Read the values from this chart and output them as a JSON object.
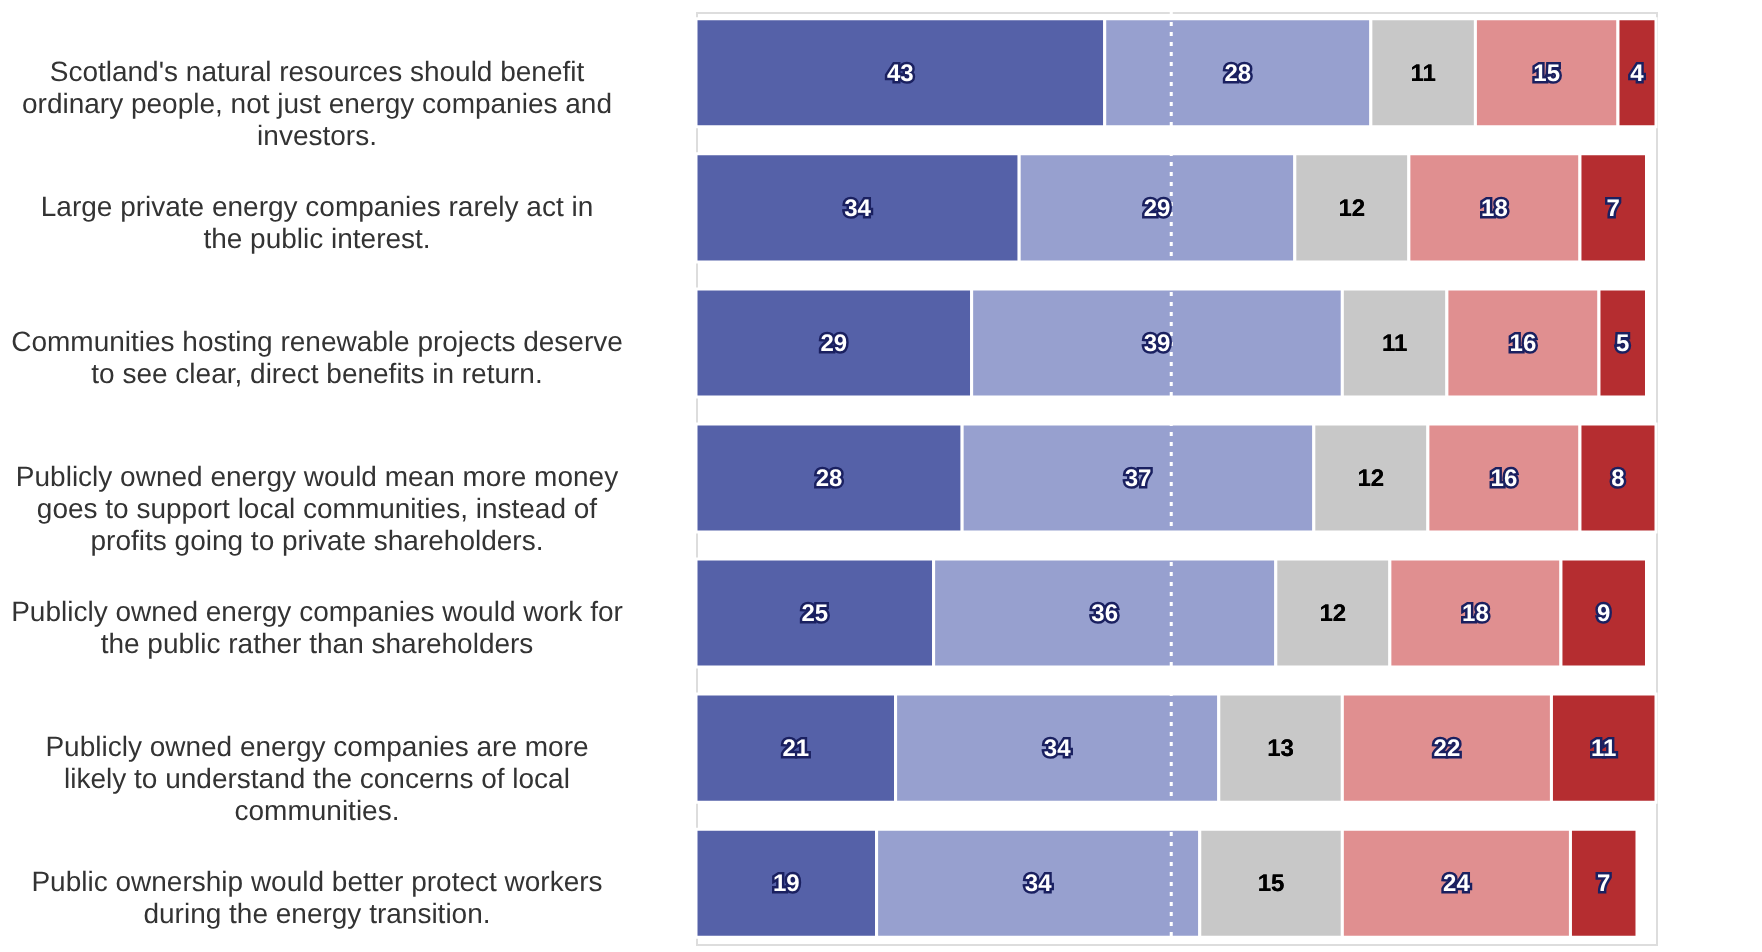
{
  "chart_data": {
    "type": "bar",
    "orientation": "horizontal",
    "stacked": true,
    "data_labels": true,
    "legend": false,
    "grid": false,
    "tick_labels": "y",
    "xlim": [
      0,
      101
    ],
    "categories": [
      "Scotland's natural resources should benefit ordinary people, not just energy companies and investors.",
      "Large private energy companies rarely act in the public interest.",
      "Communities hosting renewable projects deserve to see clear, direct benefits in return.",
      "Publicly owned energy would mean more money goes to support local communities, instead of profits going to private shareholders.",
      "Publicly owned energy companies would work for the public rather than shareholders",
      "Publicly owned energy companies are more likely to understand the concerns of local communities.",
      "Public ownership would better protect workers during the energy transition."
    ],
    "series": [
      {
        "color": "#5561a8",
        "values": [
          43,
          34,
          29,
          28,
          25,
          21,
          19
        ]
      },
      {
        "color": "#97a0cf",
        "values": [
          28,
          29,
          39,
          37,
          36,
          34,
          34
        ]
      },
      {
        "color": "#c8c8c8",
        "values": [
          11,
          12,
          11,
          12,
          12,
          13,
          15
        ]
      },
      {
        "color": "#e08f90",
        "values": [
          15,
          18,
          16,
          16,
          18,
          22,
          24
        ]
      },
      {
        "color": "#b52d30",
        "values": [
          4,
          7,
          5,
          8,
          9,
          11,
          7
        ]
      }
    ],
    "ref_lines": [
      {
        "axis": "x",
        "value": 50,
        "color": "#ffffff",
        "line_style": "dotted"
      }
    ]
  }
}
